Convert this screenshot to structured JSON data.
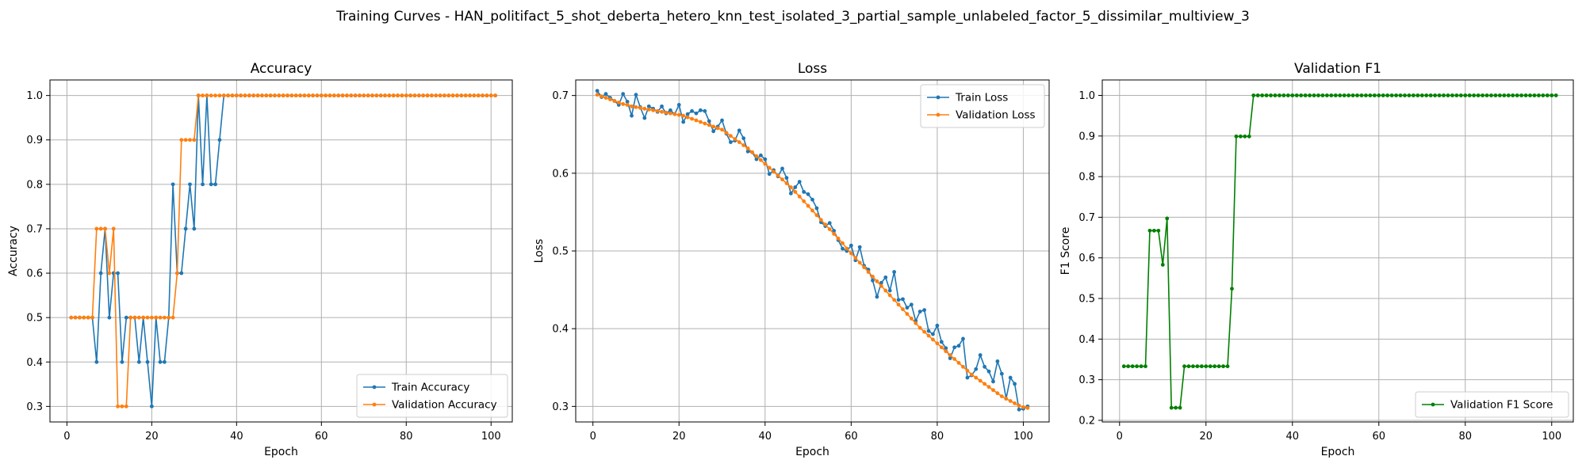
{
  "suptitle": "Training Curves - HAN_politifact_5_shot_deberta_hetero_knn_test_isolated_3_partial_sample_unlabeled_factor_5_dissimilar_multiview_3",
  "colors": {
    "train": "#1f77b4",
    "validation": "#ff7f0e",
    "f1": "#008000",
    "grid": "#b0b0b0"
  },
  "chart_data": [
    {
      "type": "line",
      "title": "Accuracy",
      "xlabel": "Epoch",
      "ylabel": "Accuracy",
      "xlim": [
        -4,
        105
      ],
      "ylim": [
        0.265,
        1.035
      ],
      "xticks": [
        0,
        20,
        40,
        60,
        80,
        100
      ],
      "yticks": [
        0.3,
        0.4,
        0.5,
        0.6,
        0.7,
        0.8,
        0.9,
        1.0
      ],
      "grid": true,
      "legend": "lower-right",
      "series": [
        {
          "name": "Train Accuracy",
          "color": "#1f77b4",
          "x": [
            1,
            2,
            3,
            4,
            5,
            6,
            7,
            8,
            9,
            10,
            11,
            12,
            13,
            14,
            15,
            16,
            17,
            18,
            19,
            20,
            21,
            22,
            23,
            24,
            25,
            26,
            27,
            28,
            29,
            30,
            31,
            32,
            33,
            34,
            35,
            36,
            37,
            38,
            39,
            40,
            41,
            42,
            43,
            44,
            45,
            46,
            47,
            48,
            49,
            50,
            51,
            52,
            53,
            54,
            55,
            56,
            57,
            58,
            59,
            60,
            61,
            62,
            63,
            64,
            65,
            66,
            67,
            68,
            69,
            70,
            71,
            72,
            73,
            74,
            75,
            76,
            77,
            78,
            79,
            80,
            81,
            82,
            83,
            84,
            85,
            86,
            87,
            88,
            89,
            90,
            91,
            92,
            93,
            94,
            95,
            96,
            97,
            98,
            99,
            100,
            101
          ],
          "y": [
            0.5,
            0.5,
            0.5,
            0.5,
            0.5,
            0.5,
            0.4,
            0.6,
            0.7,
            0.5,
            0.6,
            0.6,
            0.4,
            0.5,
            0.5,
            0.5,
            0.4,
            0.5,
            0.4,
            0.3,
            0.5,
            0.4,
            0.4,
            0.5,
            0.8,
            0.6,
            0.6,
            0.7,
            0.8,
            0.7,
            1.0,
            0.8,
            1.0,
            0.8,
            0.8,
            0.9,
            1.0,
            1.0,
            1.0,
            1.0,
            1.0,
            1.0,
            1.0,
            1.0,
            1.0,
            1.0,
            1.0,
            1.0,
            1.0,
            1.0,
            1.0,
            1.0,
            1.0,
            1.0,
            1.0,
            1.0,
            1.0,
            1.0,
            1.0,
            1.0,
            1.0,
            1.0,
            1.0,
            1.0,
            1.0,
            1.0,
            1.0,
            1.0,
            1.0,
            1.0,
            1.0,
            1.0,
            1.0,
            1.0,
            1.0,
            1.0,
            1.0,
            1.0,
            1.0,
            1.0,
            1.0,
            1.0,
            1.0,
            1.0,
            1.0,
            1.0,
            1.0,
            1.0,
            1.0,
            1.0,
            1.0,
            1.0,
            1.0,
            1.0,
            1.0,
            1.0,
            1.0,
            1.0,
            1.0,
            1.0,
            1.0
          ]
        },
        {
          "name": "Validation Accuracy",
          "color": "#ff7f0e",
          "x": [
            1,
            2,
            3,
            4,
            5,
            6,
            7,
            8,
            9,
            10,
            11,
            12,
            13,
            14,
            15,
            16,
            17,
            18,
            19,
            20,
            21,
            22,
            23,
            24,
            25,
            26,
            27,
            28,
            29,
            30,
            31,
            32,
            33,
            34,
            35,
            36,
            37,
            38,
            39,
            40,
            41,
            42,
            43,
            44,
            45,
            46,
            47,
            48,
            49,
            50,
            51,
            52,
            53,
            54,
            55,
            56,
            57,
            58,
            59,
            60,
            61,
            62,
            63,
            64,
            65,
            66,
            67,
            68,
            69,
            70,
            71,
            72,
            73,
            74,
            75,
            76,
            77,
            78,
            79,
            80,
            81,
            82,
            83,
            84,
            85,
            86,
            87,
            88,
            89,
            90,
            91,
            92,
            93,
            94,
            95,
            96,
            97,
            98,
            99,
            100,
            101
          ],
          "y": [
            0.5,
            0.5,
            0.5,
            0.5,
            0.5,
            0.5,
            0.7,
            0.7,
            0.7,
            0.6,
            0.7,
            0.3,
            0.3,
            0.3,
            0.5,
            0.5,
            0.5,
            0.5,
            0.5,
            0.5,
            0.5,
            0.5,
            0.5,
            0.5,
            0.5,
            0.6,
            0.9,
            0.9,
            0.9,
            0.9,
            1.0,
            1.0,
            1.0,
            1.0,
            1.0,
            1.0,
            1.0,
            1.0,
            1.0,
            1.0,
            1.0,
            1.0,
            1.0,
            1.0,
            1.0,
            1.0,
            1.0,
            1.0,
            1.0,
            1.0,
            1.0,
            1.0,
            1.0,
            1.0,
            1.0,
            1.0,
            1.0,
            1.0,
            1.0,
            1.0,
            1.0,
            1.0,
            1.0,
            1.0,
            1.0,
            1.0,
            1.0,
            1.0,
            1.0,
            1.0,
            1.0,
            1.0,
            1.0,
            1.0,
            1.0,
            1.0,
            1.0,
            1.0,
            1.0,
            1.0,
            1.0,
            1.0,
            1.0,
            1.0,
            1.0,
            1.0,
            1.0,
            1.0,
            1.0,
            1.0,
            1.0,
            1.0,
            1.0,
            1.0,
            1.0,
            1.0,
            1.0,
            1.0,
            1.0,
            1.0,
            1.0
          ]
        }
      ]
    },
    {
      "type": "line",
      "title": "Loss",
      "xlabel": "Epoch",
      "ylabel": "Loss",
      "xlim": [
        -4,
        106
      ],
      "ylim": [
        0.28,
        0.72
      ],
      "xticks": [
        0,
        20,
        40,
        60,
        80,
        100
      ],
      "yticks": [
        0.3,
        0.4,
        0.5,
        0.6,
        0.7
      ],
      "grid": true,
      "legend": "upper-right",
      "series": [
        {
          "name": "Train Loss",
          "color": "#1f77b4",
          "x": [
            1,
            2,
            3,
            4,
            5,
            6,
            7,
            8,
            9,
            10,
            11,
            12,
            13,
            14,
            15,
            16,
            17,
            18,
            19,
            20,
            21,
            22,
            23,
            24,
            25,
            26,
            27,
            28,
            29,
            30,
            31,
            32,
            33,
            34,
            35,
            36,
            37,
            38,
            39,
            40,
            41,
            42,
            43,
            44,
            45,
            46,
            47,
            48,
            49,
            50,
            51,
            52,
            53,
            54,
            55,
            56,
            57,
            58,
            59,
            60,
            61,
            62,
            63,
            64,
            65,
            66,
            67,
            68,
            69,
            70,
            71,
            72,
            73,
            74,
            75,
            76,
            77,
            78,
            79,
            80,
            81,
            82,
            83,
            84,
            85,
            86,
            87,
            88,
            89,
            90,
            91,
            92,
            93,
            94,
            95,
            96,
            97,
            98,
            99,
            100,
            101
          ],
          "y": [
            0.706,
            0.698,
            0.702,
            0.697,
            0.693,
            0.688,
            0.702,
            0.692,
            0.674,
            0.701,
            0.685,
            0.671,
            0.686,
            0.683,
            0.679,
            0.686,
            0.677,
            0.681,
            0.676,
            0.688,
            0.666,
            0.676,
            0.68,
            0.677,
            0.681,
            0.68,
            0.667,
            0.654,
            0.66,
            0.668,
            0.651,
            0.64,
            0.642,
            0.655,
            0.645,
            0.628,
            0.627,
            0.618,
            0.623,
            0.618,
            0.599,
            0.604,
            0.596,
            0.606,
            0.594,
            0.574,
            0.582,
            0.589,
            0.576,
            0.573,
            0.566,
            0.555,
            0.537,
            0.532,
            0.536,
            0.526,
            0.514,
            0.503,
            0.5,
            0.507,
            0.488,
            0.505,
            0.481,
            0.476,
            0.462,
            0.441,
            0.459,
            0.466,
            0.449,
            0.473,
            0.437,
            0.438,
            0.427,
            0.431,
            0.41,
            0.422,
            0.424,
            0.397,
            0.393,
            0.404,
            0.383,
            0.375,
            0.362,
            0.376,
            0.378,
            0.387,
            0.337,
            0.34,
            0.348,
            0.366,
            0.351,
            0.345,
            0.332,
            0.358,
            0.342,
            0.31,
            0.337,
            0.329,
            0.296,
            0.297,
            0.3
          ]
        },
        {
          "name": "Validation Loss",
          "color": "#ff7f0e",
          "x": [
            1,
            2,
            3,
            4,
            5,
            6,
            7,
            8,
            9,
            10,
            11,
            12,
            13,
            14,
            15,
            16,
            17,
            18,
            19,
            20,
            21,
            22,
            23,
            24,
            25,
            26,
            27,
            28,
            29,
            30,
            31,
            32,
            33,
            34,
            35,
            36,
            37,
            38,
            39,
            40,
            41,
            42,
            43,
            44,
            45,
            46,
            47,
            48,
            49,
            50,
            51,
            52,
            53,
            54,
            55,
            56,
            57,
            58,
            59,
            60,
            61,
            62,
            63,
            64,
            65,
            66,
            67,
            68,
            69,
            70,
            71,
            72,
            73,
            74,
            75,
            76,
            77,
            78,
            79,
            80,
            81,
            82,
            83,
            84,
            85,
            86,
            87,
            88,
            89,
            90,
            91,
            92,
            93,
            94,
            95,
            96,
            97,
            98,
            99,
            100,
            101
          ],
          "y": [
            0.701,
            0.699,
            0.697,
            0.695,
            0.693,
            0.691,
            0.689,
            0.688,
            0.686,
            0.685,
            0.684,
            0.683,
            0.682,
            0.681,
            0.68,
            0.679,
            0.678,
            0.677,
            0.676,
            0.675,
            0.674,
            0.672,
            0.67,
            0.668,
            0.666,
            0.664,
            0.662,
            0.66,
            0.658,
            0.656,
            0.652,
            0.648,
            0.644,
            0.64,
            0.636,
            0.632,
            0.627,
            0.622,
            0.617,
            0.612,
            0.607,
            0.602,
            0.597,
            0.592,
            0.587,
            0.582,
            0.576,
            0.57,
            0.564,
            0.558,
            0.552,
            0.546,
            0.54,
            0.534,
            0.528,
            0.522,
            0.516,
            0.51,
            0.503,
            0.497,
            0.491,
            0.485,
            0.479,
            0.473,
            0.467,
            0.461,
            0.455,
            0.449,
            0.443,
            0.437,
            0.431,
            0.425,
            0.419,
            0.413,
            0.407,
            0.401,
            0.396,
            0.391,
            0.386,
            0.381,
            0.376,
            0.371,
            0.366,
            0.361,
            0.356,
            0.351,
            0.346,
            0.341,
            0.337,
            0.333,
            0.329,
            0.325,
            0.321,
            0.317,
            0.313,
            0.31,
            0.307,
            0.304,
            0.301,
            0.299,
            0.298
          ]
        }
      ]
    },
    {
      "type": "line",
      "title": "Validation F1",
      "xlabel": "Epoch",
      "ylabel": "F1 Score",
      "xlim": [
        -4,
        105
      ],
      "ylim": [
        0.196,
        1.038
      ],
      "xticks": [
        0,
        20,
        40,
        60,
        80,
        100
      ],
      "yticks": [
        0.2,
        0.3,
        0.4,
        0.5,
        0.6,
        0.7,
        0.8,
        0.9,
        1.0
      ],
      "grid": true,
      "legend": "lower-right",
      "series": [
        {
          "name": "Validation F1 Score",
          "color": "#008000",
          "x": [
            1,
            2,
            3,
            4,
            5,
            6,
            7,
            8,
            9,
            10,
            11,
            12,
            13,
            14,
            15,
            16,
            17,
            18,
            19,
            20,
            21,
            22,
            23,
            24,
            25,
            26,
            27,
            28,
            29,
            30,
            31,
            32,
            33,
            34,
            35,
            36,
            37,
            38,
            39,
            40,
            41,
            42,
            43,
            44,
            45,
            46,
            47,
            48,
            49,
            50,
            51,
            52,
            53,
            54,
            55,
            56,
            57,
            58,
            59,
            60,
            61,
            62,
            63,
            64,
            65,
            66,
            67,
            68,
            69,
            70,
            71,
            72,
            73,
            74,
            75,
            76,
            77,
            78,
            79,
            80,
            81,
            82,
            83,
            84,
            85,
            86,
            87,
            88,
            89,
            90,
            91,
            92,
            93,
            94,
            95,
            96,
            97,
            98,
            99,
            100,
            101
          ],
          "y": [
            0.333,
            0.333,
            0.333,
            0.333,
            0.333,
            0.333,
            0.667,
            0.667,
            0.667,
            0.583,
            0.697,
            0.231,
            0.231,
            0.231,
            0.333,
            0.333,
            0.333,
            0.333,
            0.333,
            0.333,
            0.333,
            0.333,
            0.333,
            0.333,
            0.333,
            0.524,
            0.899,
            0.899,
            0.899,
            0.899,
            1.0,
            1.0,
            1.0,
            1.0,
            1.0,
            1.0,
            1.0,
            1.0,
            1.0,
            1.0,
            1.0,
            1.0,
            1.0,
            1.0,
            1.0,
            1.0,
            1.0,
            1.0,
            1.0,
            1.0,
            1.0,
            1.0,
            1.0,
            1.0,
            1.0,
            1.0,
            1.0,
            1.0,
            1.0,
            1.0,
            1.0,
            1.0,
            1.0,
            1.0,
            1.0,
            1.0,
            1.0,
            1.0,
            1.0,
            1.0,
            1.0,
            1.0,
            1.0,
            1.0,
            1.0,
            1.0,
            1.0,
            1.0,
            1.0,
            1.0,
            1.0,
            1.0,
            1.0,
            1.0,
            1.0,
            1.0,
            1.0,
            1.0,
            1.0,
            1.0,
            1.0,
            1.0,
            1.0,
            1.0,
            1.0,
            1.0,
            1.0,
            1.0,
            1.0,
            1.0,
            1.0
          ]
        }
      ]
    }
  ]
}
